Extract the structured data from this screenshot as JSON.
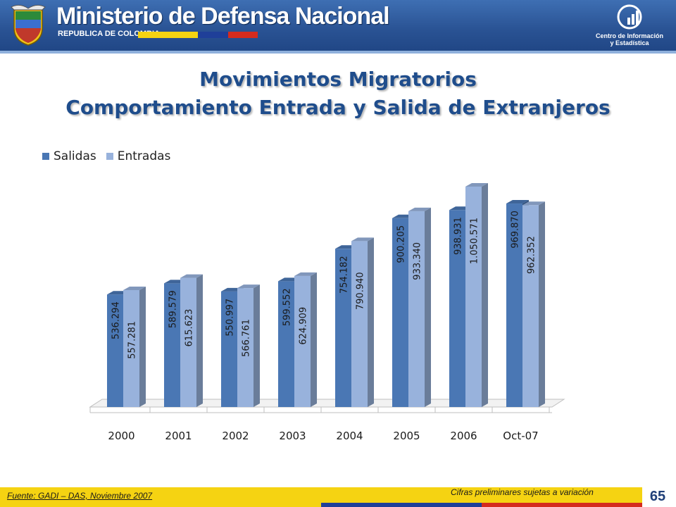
{
  "header": {
    "ministry_name": "Ministerio de Defensa Nacional",
    "republic": "REPUBLICA DE COLOMBIA",
    "center_line1": "Centro de Información",
    "center_line2": "y Estadística",
    "flag_colors": [
      "#f5d312",
      "#1f3f99",
      "#d52b1e"
    ]
  },
  "title": {
    "line1": "Movimientos Migratorios",
    "line2": "Comportamiento Entrada y Salida de Extranjeros"
  },
  "footer": {
    "source": "Fuente: GADI – DAS,  Noviembre 2007",
    "note": "Cifras preliminares sujetas a variación",
    "page_number": "65"
  },
  "colors": {
    "salidas": "#4a77b4",
    "entradas": "#98b2dc",
    "title": "#1f4d8c"
  },
  "chart_data": {
    "type": "bar",
    "categories": [
      "2000",
      "2001",
      "2002",
      "2003",
      "2004",
      "2005",
      "2006",
      "Oct-07"
    ],
    "series": [
      {
        "name": "Salidas",
        "values": [
          536294,
          589579,
          550997,
          599552,
          754182,
          900205,
          938931,
          969870
        ],
        "labels": [
          "536.294",
          "589.579",
          "550.997",
          "599.552",
          "754.182",
          "900.205",
          "938.931",
          "969.870"
        ]
      },
      {
        "name": "Entradas",
        "values": [
          557281,
          615623,
          566761,
          624909,
          790940,
          933340,
          1050571,
          962352
        ],
        "labels": [
          "557.281",
          "615.623",
          "566.761",
          "624.909",
          "790.940",
          "933.340",
          "1.050.571",
          "962.352"
        ]
      }
    ],
    "title": "",
    "xlabel": "",
    "ylabel": "",
    "ylim": [
      0,
      1100000
    ],
    "legend": "top-left",
    "grid": false
  }
}
